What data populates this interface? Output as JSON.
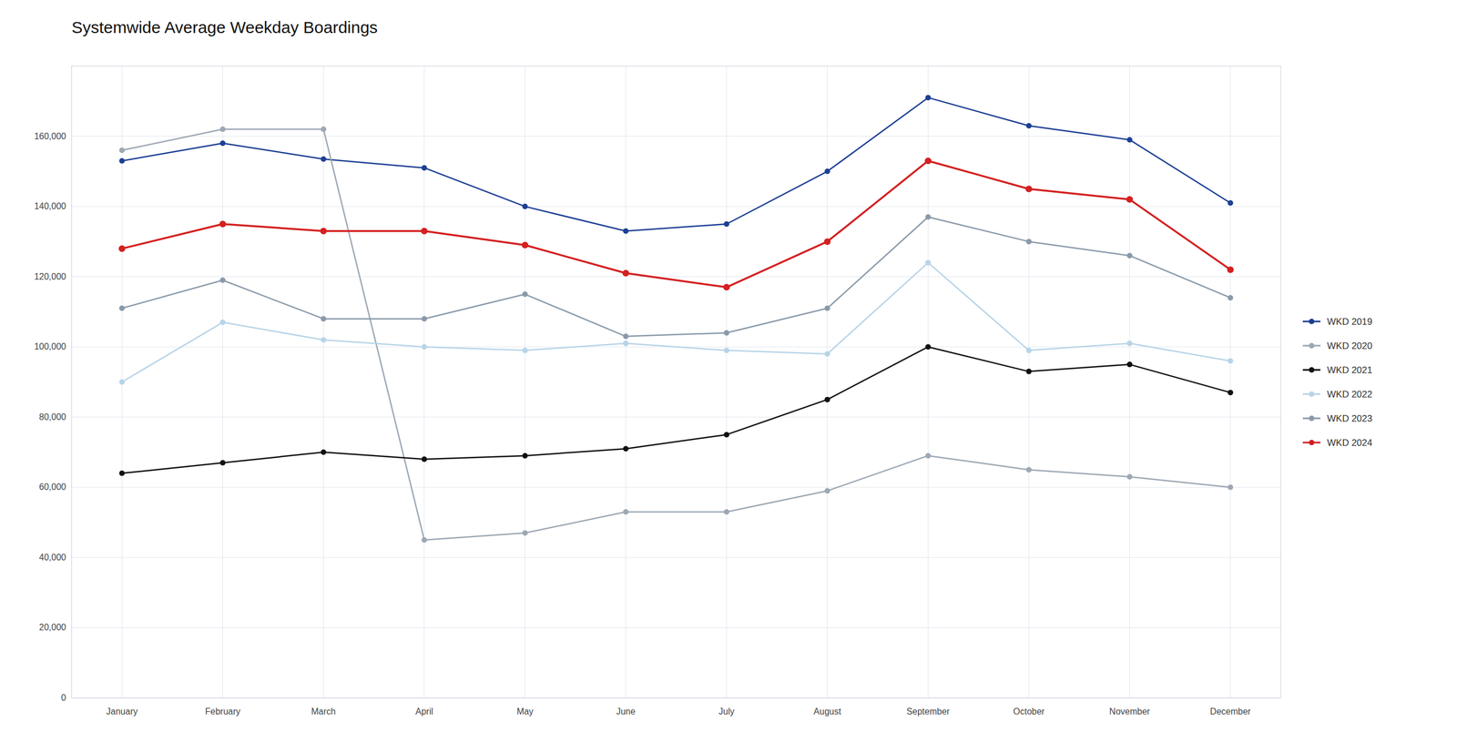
{
  "chart_data": {
    "type": "line",
    "title": "Systemwide Average Weekday Boardings",
    "categories": [
      "January",
      "February",
      "March",
      "April",
      "May",
      "June",
      "July",
      "August",
      "September",
      "October",
      "November",
      "December"
    ],
    "series": [
      {
        "name": "WKD 2019",
        "color": "#1c3f94",
        "values": [
          153000,
          158000,
          153500,
          151000,
          140000,
          133000,
          135000,
          150000,
          171000,
          163000,
          159000,
          141000
        ]
      },
      {
        "name": "WKD 2020",
        "color": "#9da8b4",
        "values": [
          156000,
          162000,
          162000,
          45000,
          47000,
          53000,
          53000,
          59000,
          69000,
          65000,
          63000,
          60000
        ]
      },
      {
        "name": "WKD 2021",
        "color": "#111111",
        "values": [
          64000,
          67000,
          70000,
          68000,
          69000,
          71000,
          75000,
          85000,
          100000,
          93000,
          95000,
          87000
        ]
      },
      {
        "name": "WKD 2022",
        "color": "#b8d4e8",
        "values": [
          90000,
          107000,
          102000,
          100000,
          99000,
          101000,
          99000,
          98000,
          124000,
          99000,
          101000,
          96000
        ]
      },
      {
        "name": "WKD 2023",
        "color": "#8a9aaa",
        "values": [
          111000,
          119000,
          108000,
          108000,
          115000,
          103000,
          104000,
          111000,
          137000,
          130000,
          126000,
          114000
        ]
      },
      {
        "name": "WKD 2024",
        "color": "#d42020",
        "values": [
          128000,
          135000,
          133000,
          133000,
          129000,
          121000,
          117000,
          130000,
          153000,
          145000,
          142000,
          122000
        ]
      }
    ],
    "ylim": [
      0,
      180000
    ],
    "yticks": [
      0,
      {
        "value": 20000,
        "label": "20,000"
      },
      {
        "value": 40000,
        "label": "40,000"
      },
      {
        "value": 60000,
        "label": "60,000"
      },
      {
        "value": 80000,
        "label": "80,000"
      },
      {
        "value": 100000,
        "label": "100,000"
      },
      {
        "value": 120000,
        "label": "120,000"
      },
      {
        "value": 140000,
        "label": "140,000"
      },
      {
        "value": 160000,
        "label": "160,000"
      }
    ],
    "grid": true,
    "legend": "right",
    "marker": "circle"
  }
}
